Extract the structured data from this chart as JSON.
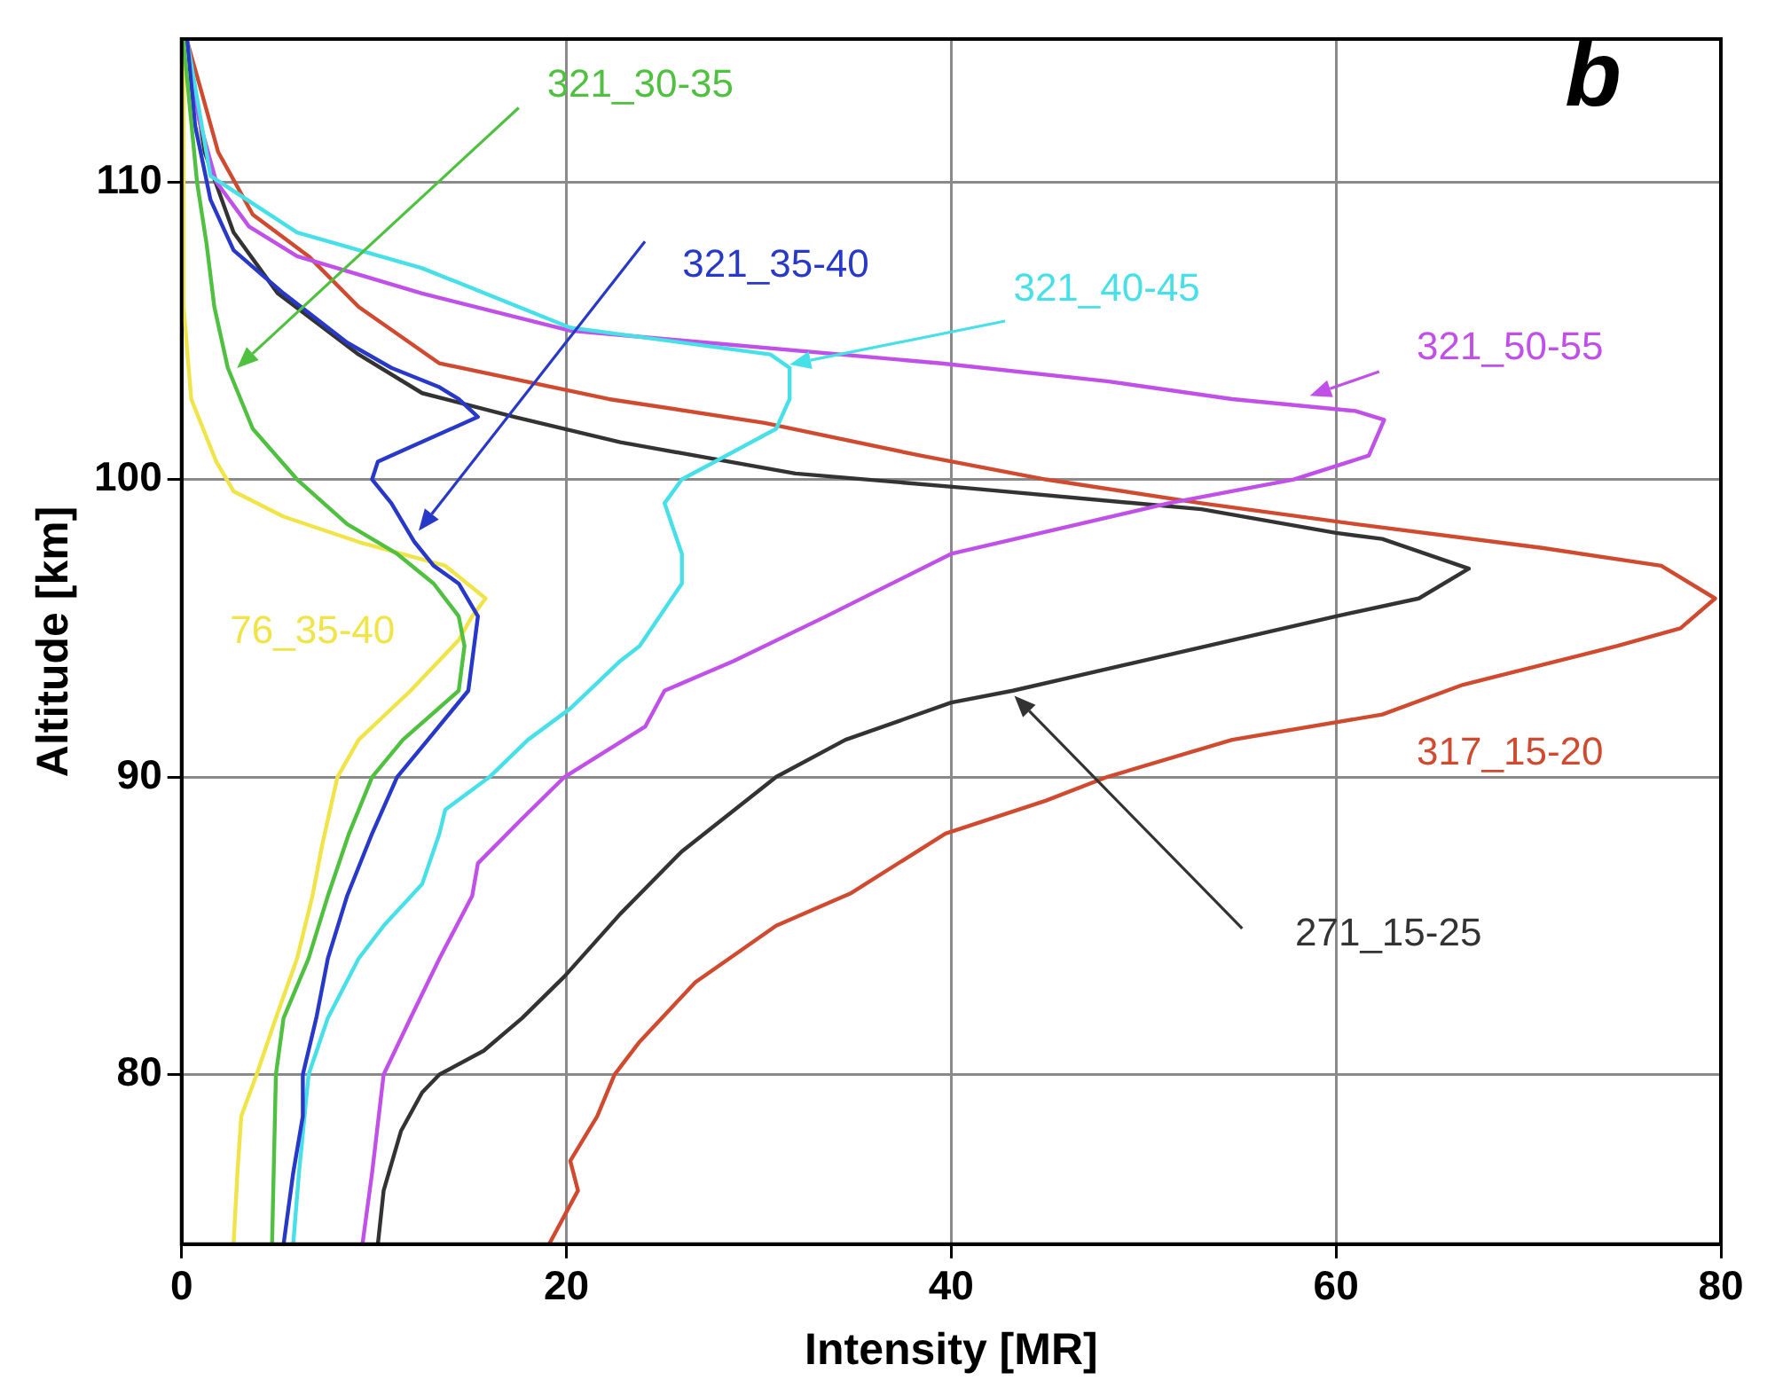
{
  "chart_data": {
    "type": "line",
    "xlabel": "Intensity [MR]",
    "ylabel": "Altitude [km]",
    "annotations": [
      "b"
    ],
    "xlim": [
      0,
      80
    ],
    "xticks": [
      0,
      20,
      40,
      60,
      80
    ],
    "ylim": [
      74.3,
      114.8
    ],
    "yticks": [
      80,
      90,
      100,
      110
    ],
    "grid": true,
    "marker": "none",
    "line_style": "solid",
    "series": [
      {
        "name": "321_30-35",
        "color": "#50c040",
        "x": [
          4.7,
          4.9,
          5.3,
          6.6,
          7.6,
          8.7,
          9.9,
          11.5,
          14.4,
          14.7,
          14.4,
          13.1,
          11.2,
          8.6,
          6,
          3.7,
          2.4,
          1.7,
          1.3,
          0.8,
          0.1
        ],
        "values": [
          74.3,
          80,
          81.9,
          83.9,
          86,
          88.1,
          90,
          91.25,
          92.9,
          94.4,
          95.4,
          96.5,
          97.5,
          98.5,
          100,
          101.7,
          103.75,
          105.8,
          107.9,
          110,
          114.7
        ]
      },
      {
        "name": "321_35-40",
        "color": "#2838c8",
        "x": [
          5.3,
          5.8,
          6.3,
          6.3,
          7,
          7.6,
          8.6,
          9.9,
          11.2,
          12.8,
          14.9,
          15.2,
          15.4,
          14.4,
          13.1,
          12.1,
          10.9,
          9.9,
          10.2,
          15.4,
          14.4,
          13.4,
          10.9,
          8.6,
          5.3,
          2.7,
          1.5,
          0.7,
          0.3
        ],
        "values": [
          74.3,
          76.7,
          78.6,
          80,
          81.9,
          83.9,
          86,
          88.1,
          90,
          91.25,
          92.9,
          94.4,
          95.4,
          96.5,
          97.1,
          97.9,
          99.2,
          100,
          100.6,
          102.1,
          102.7,
          103.1,
          103.75,
          104.6,
          106.25,
          107.7,
          109.4,
          111.9,
          114.7
        ]
      },
      {
        "name": "321_40-45",
        "color": "#48e0e8",
        "x": [
          5.8,
          6.1,
          6.6,
          7.6,
          9.2,
          10.5,
          12.5,
          13.4,
          13.7,
          16,
          18,
          20.2,
          22.8,
          23.8,
          26,
          26,
          25.1,
          26,
          30.9,
          31.6,
          31.6,
          30.6,
          20.2,
          12.5,
          6,
          1.5,
          0.3
        ],
        "values": [
          74.3,
          76.7,
          80,
          81.9,
          83.9,
          85,
          86.4,
          88.1,
          88.9,
          90,
          91.25,
          92.3,
          93.9,
          94.4,
          96.5,
          97.5,
          99.2,
          100,
          101.7,
          102.7,
          103.75,
          104.2,
          105.1,
          107.1,
          108.3,
          110.2,
          114.7
        ]
      },
      {
        "name": "321_50-55",
        "color": "#c050e8",
        "x": [
          9.4,
          9.9,
          10.5,
          11.9,
          13.4,
          15.1,
          15.4,
          17.7,
          19.9,
          24.1,
          25.1,
          28.7,
          33.5,
          40,
          51.3,
          57.8,
          61.7,
          62.5,
          61,
          54.6,
          48.1,
          39.5,
          20.2,
          12.5,
          6,
          3.5,
          1.8,
          0.9,
          0.3
        ],
        "values": [
          74.3,
          76.7,
          80,
          81.9,
          83.9,
          86,
          87.1,
          88.6,
          90,
          91.7,
          92.9,
          93.9,
          95.4,
          97.5,
          99.2,
          100,
          100.8,
          102,
          102.3,
          102.7,
          103.3,
          103.9,
          105,
          106.25,
          107.5,
          108.5,
          110,
          112.1,
          114.7
        ]
      },
      {
        "name": "76_35-40",
        "color": "#f0e448",
        "x": [
          2.7,
          2.9,
          3.1,
          3.9,
          4.9,
          6,
          6.8,
          7.3,
          8.1,
          9.2,
          11.9,
          14.4,
          15.1,
          15.8,
          13.7,
          9.2,
          5.3,
          2.7,
          1.8,
          0.5,
          0.1,
          0.1
        ],
        "values": [
          74.3,
          76.7,
          78.6,
          80,
          81.9,
          83.9,
          86,
          87.7,
          90,
          91.25,
          92.9,
          94.6,
          95.4,
          96,
          97.1,
          97.9,
          98.75,
          99.6,
          100.6,
          102.7,
          105.8,
          114.7
        ]
      },
      {
        "name": "317_15-20",
        "color": "#d04a30",
        "x": [
          19.1,
          20.6,
          20.2,
          21.6,
          22.5,
          23.8,
          26.7,
          30.9,
          34.8,
          39.7,
          44.9,
          48.1,
          54.6,
          62.4,
          66.6,
          74.6,
          77.9,
          79.7,
          76.9,
          70.7,
          61,
          53,
          44.9,
          38.4,
          30.3,
          22.2,
          13.4,
          9.2,
          6.6,
          3.7,
          1.9,
          1,
          0.3
        ],
        "values": [
          74.3,
          76.1,
          77.1,
          78.6,
          80,
          81.1,
          83.1,
          85,
          86.1,
          88.1,
          89.2,
          90,
          91.25,
          92.1,
          93.1,
          94.4,
          95,
          96,
          97.1,
          97.7,
          98.5,
          99.2,
          100,
          100.8,
          101.9,
          102.7,
          103.9,
          105.8,
          107.5,
          108.9,
          111,
          113.1,
          114.7
        ]
      },
      {
        "name": "271_15-25",
        "color": "#333333",
        "x": [
          10.2,
          10.5,
          11.4,
          12.5,
          13.4,
          15.7,
          17.7,
          19.9,
          22.8,
          26,
          30.9,
          34.5,
          40,
          43.2,
          60,
          64.3,
          66.9,
          62.4,
          60,
          53,
          41,
          31.9,
          22.8,
          17.3,
          12.5,
          9.2,
          5,
          2.7,
          1.2,
          0.3
        ],
        "values": [
          74.3,
          76.1,
          78.1,
          79.4,
          80,
          80.8,
          81.9,
          83.3,
          85.4,
          87.5,
          90,
          91.25,
          92.5,
          92.9,
          95.4,
          96,
          97,
          98,
          98.2,
          99,
          99.7,
          100.2,
          101.25,
          102.1,
          102.9,
          104.2,
          106.25,
          108.3,
          111,
          114.7
        ]
      }
    ]
  }
}
